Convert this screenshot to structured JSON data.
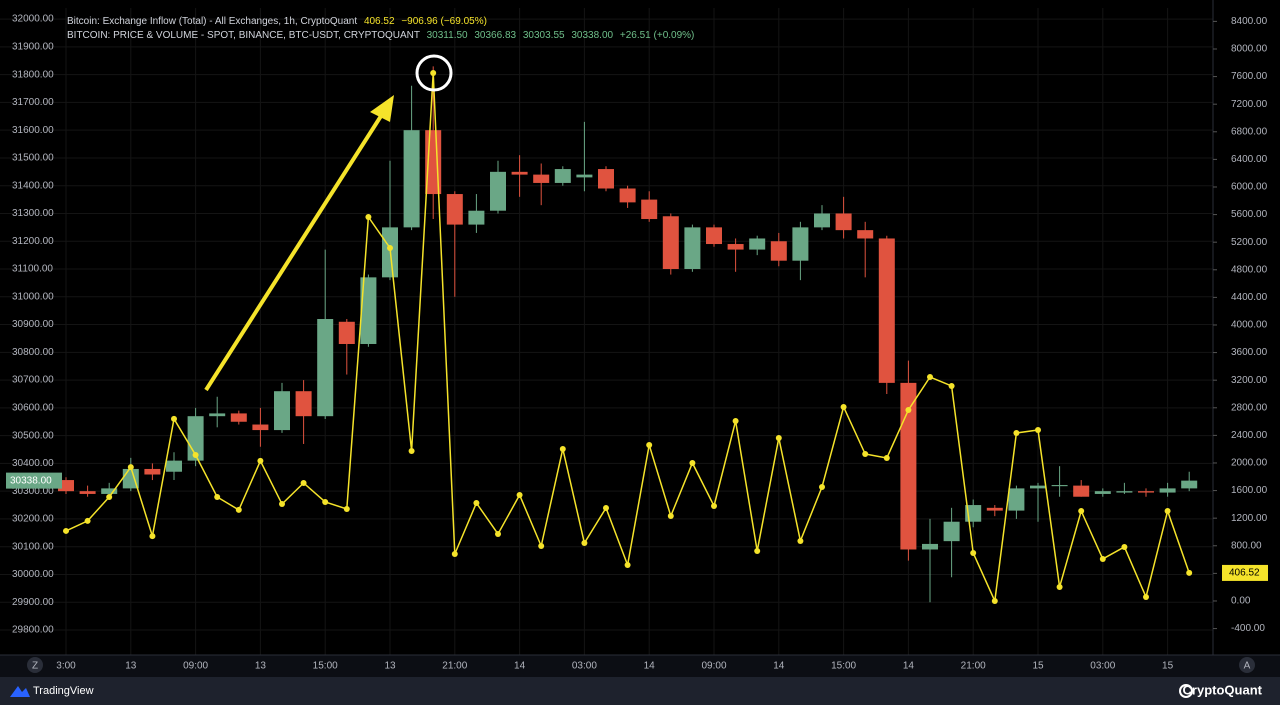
{
  "chart_data": {
    "type": "candlestick",
    "legend": [
      {
        "name": "Bitcoin: Exchange Inflow (Total) - All Exchanges, 1h, CryptoQuant",
        "stats": [
          "406.52",
          "−906.96 (−69.05%)"
        ]
      },
      {
        "name": "BITCOIN: PRICE & VOLUME - SPOT, BINANCE, BTC-USDT, CRYPTOQUANT",
        "stats": [
          "30311.50",
          "30366.83",
          "30303.55",
          "30338.00",
          "+26.51 (+0.09%)"
        ]
      }
    ],
    "categories": [
      "3:00",
      null,
      null,
      "13",
      null,
      null,
      "09:00",
      null,
      null,
      "13",
      null,
      null,
      "15:00",
      null,
      null,
      "13",
      null,
      null,
      "21:00",
      null,
      null,
      "14",
      null,
      null,
      "03:00",
      null,
      null,
      "14",
      null,
      null,
      "09:00",
      null,
      null,
      "14",
      null,
      null,
      "15:00",
      null,
      null,
      "14",
      null,
      null,
      "21:00",
      null,
      null,
      "15",
      null,
      null,
      "03:00",
      null,
      null,
      "15",
      null
    ],
    "candles": {
      "up_color": "#6aa786",
      "down_color": "#e0533f",
      "open": [
        30340,
        30300,
        30290,
        30310,
        30380,
        30370,
        30410,
        30570,
        30580,
        30540,
        30520,
        30660,
        30570,
        30910,
        30830,
        31070,
        31250,
        31600,
        31370,
        31260,
        31310,
        31450,
        31440,
        31410,
        31430,
        31460,
        31390,
        31350,
        31290,
        31100,
        31250,
        31190,
        31170,
        31200,
        31130,
        31250,
        31300,
        31240,
        31210,
        30690,
        30090,
        30120,
        30190,
        30240,
        30230,
        30310,
        30318,
        30320,
        30290,
        30295,
        30300,
        30295,
        30310
      ],
      "high": [
        30350,
        30320,
        30330,
        30420,
        30400,
        30440,
        30600,
        30640,
        30590,
        30600,
        30690,
        30700,
        31170,
        30920,
        31080,
        31490,
        31760,
        31830,
        31380,
        31370,
        31490,
        31510,
        31480,
        31470,
        31630,
        31470,
        31400,
        31380,
        31300,
        31260,
        31260,
        31210,
        31220,
        31230,
        31270,
        31330,
        31360,
        31270,
        31220,
        30770,
        30200,
        30240,
        30270,
        30250,
        30320,
        30330,
        30390,
        30340,
        30310,
        30330,
        30310,
        30330,
        30370
      ],
      "low": [
        30290,
        30280,
        30270,
        30300,
        30340,
        30340,
        30390,
        30530,
        30540,
        30460,
        30510,
        30470,
        30560,
        30720,
        30820,
        31060,
        31240,
        31280,
        31000,
        31230,
        31300,
        31360,
        31330,
        31400,
        31380,
        31380,
        31320,
        31270,
        31080,
        31090,
        31180,
        31090,
        31150,
        31110,
        31060,
        31240,
        31210,
        31070,
        30650,
        30050,
        29900,
        29990,
        30170,
        30210,
        30200,
        30190,
        30280,
        30280,
        30280,
        30290,
        30280,
        30280,
        30300
      ],
      "close": [
        30300,
        30290,
        30310,
        30380,
        30360,
        30410,
        30570,
        30580,
        30550,
        30520,
        30660,
        30570,
        30920,
        30830,
        31070,
        31250,
        31600,
        31370,
        31260,
        31310,
        31450,
        31440,
        31410,
        31460,
        31440,
        31390,
        31340,
        31280,
        31100,
        31250,
        31190,
        31170,
        31210,
        31130,
        31250,
        31300,
        31240,
        31210,
        30690,
        30090,
        30110,
        30190,
        30250,
        30230,
        30310,
        30320,
        30322,
        30280,
        30300,
        30300,
        30295,
        30310,
        30338
      ]
    },
    "series": [
      {
        "type": "line",
        "axis": "y2",
        "color": "#f5e32a",
        "values": [
          1015,
          1160,
          1507,
          1940,
          940,
          2640,
          2115,
          1507,
          1320,
          2030,
          1405,
          1710,
          1435,
          1333,
          5565,
          5116,
          2174,
          7652,
          681,
          1420,
          971,
          1536,
          797,
          2203,
          840,
          1348,
          522,
          2261,
          1232,
          2000,
          1377,
          2609,
          725,
          2362,
          870,
          1652,
          2812,
          2130,
          2072,
          2768,
          3246,
          3116,
          696,
          0,
          2435,
          2478,
          203,
          1304,
          609,
          783,
          58,
          1304,
          406.52
        ]
      }
    ],
    "price_badge": "30338.00",
    "inflow_badge": "406.52",
    "ylim": [
      29710,
      32040
    ],
    "yticks": [
      {
        "value": 29800,
        "label": "29800.00"
      },
      {
        "value": 29900,
        "label": "29900.00"
      },
      {
        "value": 30000,
        "label": "30000.00"
      },
      {
        "value": 30100,
        "label": "30100.00"
      },
      {
        "value": 30200,
        "label": "30200.00"
      },
      {
        "value": 30300,
        "label": "30300.00"
      },
      {
        "value": 30400,
        "label": "30400.00"
      },
      {
        "value": 30500,
        "label": "30500.00"
      },
      {
        "value": 30600,
        "label": "30600.00"
      },
      {
        "value": 30700,
        "label": "30700.00"
      },
      {
        "value": 30800,
        "label": "30800.00"
      },
      {
        "value": 30900,
        "label": "30900.00"
      },
      {
        "value": 31000,
        "label": "31000.00"
      },
      {
        "value": 31100,
        "label": "31100.00"
      },
      {
        "value": 31200,
        "label": "31200.00"
      },
      {
        "value": 31300,
        "label": "31300.00"
      },
      {
        "value": 31400,
        "label": "31400.00"
      },
      {
        "value": 31500,
        "label": "31500.00"
      },
      {
        "value": 31600,
        "label": "31600.00"
      },
      {
        "value": 31700,
        "label": "31700.00"
      },
      {
        "value": 31800,
        "label": "31800.00"
      },
      {
        "value": 31900,
        "label": "31900.00"
      },
      {
        "value": 32000,
        "label": "32000.00"
      }
    ],
    "y2lim": [
      -783,
      8594
    ],
    "y2ticks": [
      {
        "value": -400,
        "label": "-400.00"
      },
      {
        "value": 0,
        "label": "0.00"
      },
      {
        "value": 400,
        "label": "400.00"
      },
      {
        "value": 800,
        "label": "800.00"
      },
      {
        "value": 1200,
        "label": "1200.00"
      },
      {
        "value": 1600,
        "label": "1600.00"
      },
      {
        "value": 2000,
        "label": "2000.00"
      },
      {
        "value": 2400,
        "label": "2400.00"
      },
      {
        "value": 2800,
        "label": "2800.00"
      },
      {
        "value": 3200,
        "label": "3200.00"
      },
      {
        "value": 3600,
        "label": "3600.00"
      },
      {
        "value": 4000,
        "label": "4000.00"
      },
      {
        "value": 4400,
        "label": "4400.00"
      },
      {
        "value": 4800,
        "label": "4800.00"
      },
      {
        "value": 5200,
        "label": "5200.00"
      },
      {
        "value": 5600,
        "label": "5600.00"
      },
      {
        "value": 6000,
        "label": "6000.00"
      },
      {
        "value": 6400,
        "label": "6400.00"
      },
      {
        "value": 6800,
        "label": "6800.00"
      },
      {
        "value": 7200,
        "label": "7200.00"
      },
      {
        "value": 7600,
        "label": "7600.00"
      },
      {
        "value": 8000,
        "label": "8000.00"
      },
      {
        "value": 8400,
        "label": "8400.00"
      }
    ],
    "grid": true
  },
  "footer": {
    "left": "TradingView",
    "right": "CryptoQuant",
    "axis_buttons": [
      "Z",
      "A"
    ]
  }
}
